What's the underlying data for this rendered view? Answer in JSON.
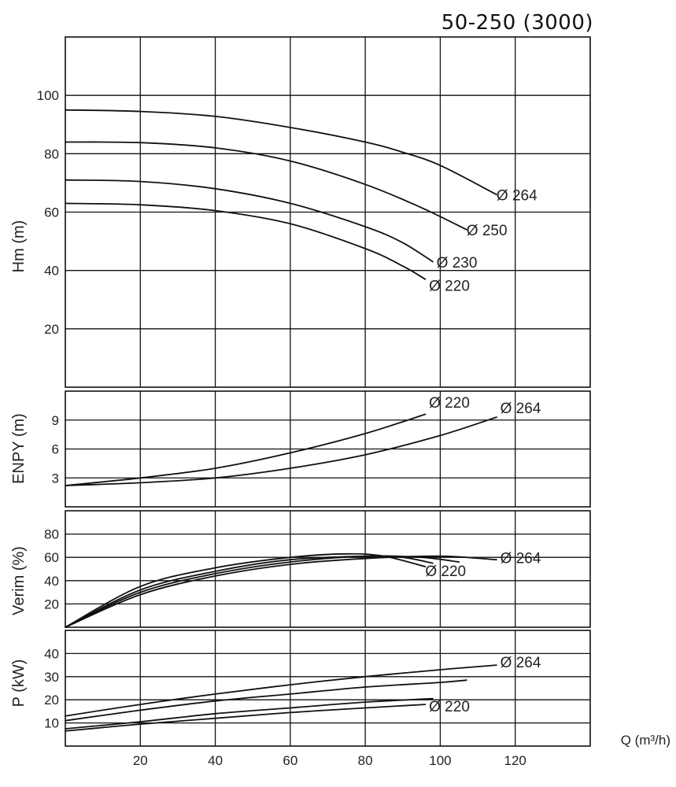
{
  "chart_data": {
    "title": "50-250 (3000)",
    "type": "line",
    "xlabel": "Q (m³/h)",
    "xlim": [
      0,
      140
    ],
    "xticks": [
      20,
      40,
      60,
      80,
      100,
      120
    ],
    "grid": true,
    "panels": [
      {
        "id": "head",
        "ylabel": "Hm (m)",
        "ylim": [
          0,
          120
        ],
        "yticks": [
          20,
          40,
          60,
          80,
          100
        ],
        "series": [
          {
            "name": "Ø 264",
            "x": [
              0,
              20,
              40,
              60,
              80,
              90,
              100,
              115
            ],
            "y": [
              95,
              94.5,
              92.8,
              89,
              84,
              80.5,
              76,
              66
            ]
          },
          {
            "name": "Ø 250",
            "x": [
              0,
              20,
              40,
              60,
              80,
              95,
              107
            ],
            "y": [
              84,
              83.8,
              82,
              77.5,
              69.5,
              61.5,
              54
            ]
          },
          {
            "name": "Ø 230",
            "x": [
              0,
              20,
              40,
              60,
              80,
              90,
              98
            ],
            "y": [
              71,
              70.5,
              68,
              63,
              55,
              49.5,
              43
            ]
          },
          {
            "name": "Ø 220",
            "x": [
              0,
              20,
              40,
              60,
              80,
              90,
              96
            ],
            "y": [
              63,
              62.5,
              60.5,
              56,
              47.5,
              41.5,
              37
            ]
          }
        ],
        "labels": [
          {
            "text": "Ø 264",
            "x": 115,
            "y": 64
          },
          {
            "text": "Ø 250",
            "x": 107,
            "y": 52
          },
          {
            "text": "Ø 230",
            "x": 99,
            "y": 41
          },
          {
            "text": "Ø 220",
            "x": 97,
            "y": 33
          }
        ]
      },
      {
        "id": "npsh",
        "ylabel": "ENPY (m)",
        "ylim": [
          0,
          12
        ],
        "yticks": [
          3,
          6,
          9
        ],
        "series": [
          {
            "name": "Ø 220",
            "x": [
              0,
              20,
              40,
              60,
              80,
              96
            ],
            "y": [
              2.2,
              3.0,
              4.0,
              5.6,
              7.6,
              9.6
            ]
          },
          {
            "name": "Ø 264",
            "x": [
              0,
              20,
              40,
              60,
              80,
              100,
              115
            ],
            "y": [
              2.2,
              2.5,
              3.0,
              4.0,
              5.4,
              7.4,
              9.3
            ]
          }
        ],
        "labels": [
          {
            "text": "Ø 220",
            "x": 97,
            "y": 10.3
          },
          {
            "text": "Ø 264",
            "x": 116,
            "y": 9.7
          }
        ]
      },
      {
        "id": "efficiency",
        "ylabel": "Verim (%)",
        "ylim": [
          0,
          100
        ],
        "yticks": [
          20,
          40,
          60,
          80
        ],
        "series": [
          {
            "name": "Ø 264",
            "x": [
              0,
              20,
              40,
              60,
              80,
              100,
              115
            ],
            "y": [
              0,
              28,
              44,
              54,
              59,
              61,
              58
            ]
          },
          {
            "name": "Ø 250",
            "x": [
              0,
              20,
              40,
              60,
              80,
              95,
              105
            ],
            "y": [
              0,
              30,
              46,
              56,
              61,
              60,
              56
            ]
          },
          {
            "name": "Ø 230",
            "x": [
              0,
              20,
              40,
              60,
              80,
              90,
              98
            ],
            "y": [
              0,
              32,
              48,
              58,
              61,
              60,
              55
            ]
          },
          {
            "name": "Ø 220",
            "x": [
              0,
              20,
              40,
              60,
              75,
              85,
              96
            ],
            "y": [
              0,
              35,
              51,
              60,
              63,
              61,
              52
            ]
          }
        ],
        "labels": [
          {
            "text": "Ø 264",
            "x": 116,
            "y": 55
          },
          {
            "text": "Ø 220",
            "x": 96,
            "y": 44
          }
        ]
      },
      {
        "id": "power",
        "ylabel": "P (kW)",
        "ylim": [
          0,
          50
        ],
        "yticks": [
          10,
          20,
          30,
          40
        ],
        "series": [
          {
            "name": "Ø 264",
            "x": [
              0,
              20,
              40,
              60,
              80,
              100,
              115
            ],
            "y": [
              13,
              18,
              22.5,
              26.5,
              30,
              33,
              35
            ]
          },
          {
            "name": "Ø 250",
            "x": [
              0,
              20,
              40,
              60,
              80,
              100,
              107
            ],
            "y": [
              11,
              15.5,
              19.5,
              22.5,
              25.5,
              27.5,
              28.5
            ]
          },
          {
            "name": "Ø 230",
            "x": [
              0,
              20,
              40,
              60,
              80,
              98
            ],
            "y": [
              7.5,
              10.5,
              14,
              16.5,
              19,
              20.5
            ]
          },
          {
            "name": "Ø 220",
            "x": [
              0,
              20,
              40,
              60,
              80,
              96
            ],
            "y": [
              6.5,
              9.5,
              12,
              14.5,
              16.5,
              18
            ]
          }
        ],
        "labels": [
          {
            "text": "Ø 264",
            "x": 116,
            "y": 34
          },
          {
            "text": "Ø 220",
            "x": 97,
            "y": 15
          }
        ]
      }
    ]
  }
}
